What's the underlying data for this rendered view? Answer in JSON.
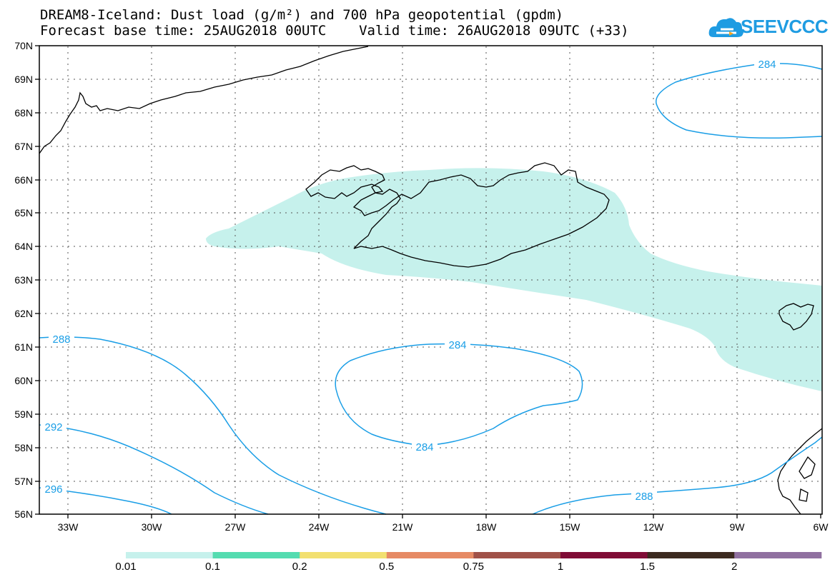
{
  "title_line1": "DREAM8-Iceland: Dust load (g/m²) and 700 hPa geopotential (gpdm)",
  "title_line2": "Forecast base time: 25AUG2018 00UTC    Valid time: 26AUG2018 09UTC (+33)",
  "logo": {
    "text": "SEEVCCC",
    "icon": "cloud-icon",
    "color": "#1f9ce2"
  },
  "lat_labels": [
    "70N",
    "69N",
    "68N",
    "67N",
    "66N",
    "65N",
    "64N",
    "63N",
    "62N",
    "61N",
    "60N",
    "59N",
    "58N",
    "57N",
    "56N"
  ],
  "lon_labels": [
    "33W",
    "30W",
    "27W",
    "24W",
    "21W",
    "18W",
    "15W",
    "12W",
    "9W",
    "6W"
  ],
  "contour_labels": {
    "c284_ne": "284",
    "c284_center_top": "284",
    "c284_center_bottom": "284",
    "c288_w": "288",
    "c292_w": "292",
    "c296_w": "296",
    "c288_se": "288"
  },
  "colorbar": {
    "labels": [
      "0.01",
      "0.1",
      "0.2",
      "0.5",
      "0.75",
      "1",
      "1.5",
      "2"
    ],
    "colors": [
      "#c6f1ec",
      "#54dcb0",
      "#f2e070",
      "#e68a64",
      "#a05148",
      "#800c36",
      "#3c2a20",
      "#9070a0"
    ]
  },
  "dust_color": "#c6f1ec",
  "contour_color": "#1a9ee6"
}
